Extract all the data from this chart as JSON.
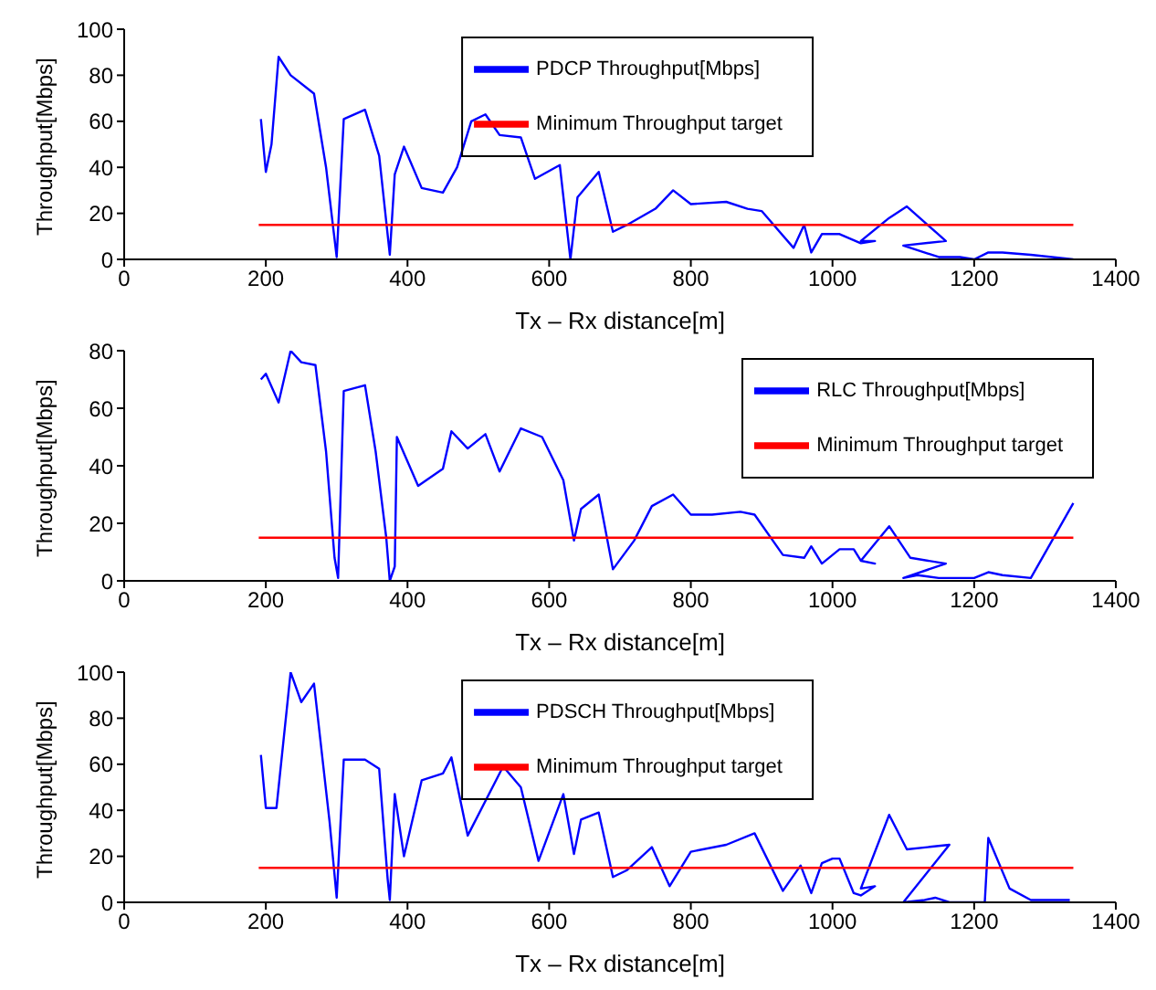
{
  "chart_data": [
    {
      "type": "line",
      "xlabel": "Tx – Rx distance[m]",
      "ylabel": "Throughput[Mbps]",
      "xlim": [
        0,
        1400
      ],
      "xticks": [
        0,
        200,
        400,
        600,
        800,
        1000,
        1200,
        1400
      ],
      "ylim": [
        0,
        100
      ],
      "yticks": [
        0,
        20,
        40,
        60,
        80,
        100
      ],
      "legend": "top",
      "marker": "none",
      "line_style": "solid",
      "series": [
        {
          "name": "PDCP Throughput[Mbps]",
          "color": "#0000ff",
          "x": [
            193,
            200,
            208,
            218,
            235,
            268,
            285,
            300,
            310,
            340,
            360,
            375,
            382,
            395,
            420,
            450,
            470,
            490,
            510,
            530,
            560,
            580,
            615,
            630,
            640,
            670,
            690,
            710,
            750,
            775,
            800,
            850,
            880,
            900,
            945,
            960,
            970,
            985,
            1010,
            1040,
            1060,
            1040,
            1080,
            1105,
            1160,
            1100,
            1150,
            1180,
            1200,
            1220,
            1240,
            1280,
            1340
          ],
          "values": [
            61,
            38,
            50,
            88,
            80,
            72,
            40,
            1,
            61,
            65,
            45,
            2,
            37,
            49,
            31,
            29,
            40,
            60,
            63,
            54,
            53,
            35,
            41,
            0,
            27,
            38,
            12,
            15,
            22,
            30,
            24,
            25,
            22,
            21,
            5,
            15,
            3,
            11,
            11,
            7,
            8,
            8,
            18,
            23,
            8,
            6,
            1,
            1,
            0,
            3,
            3,
            2,
            0
          ]
        },
        {
          "name": "Minimum Throughput target",
          "color": "#ff0000",
          "x": [
            190,
            1340
          ],
          "values": [
            15,
            15
          ]
        }
      ]
    },
    {
      "type": "line",
      "xlabel": "Tx – Rx distance[m]",
      "ylabel": "Throughput[Mbps]",
      "xlim": [
        0,
        1400
      ],
      "xticks": [
        0,
        200,
        400,
        600,
        800,
        1000,
        1200,
        1400
      ],
      "ylim": [
        0,
        80
      ],
      "yticks": [
        0,
        20,
        40,
        60,
        80
      ],
      "legend": "top right",
      "marker": "none",
      "line_style": "solid",
      "series": [
        {
          "name": "RLC Throughput[Mbps]",
          "color": "#0000ff",
          "x": [
            193,
            200,
            218,
            235,
            250,
            270,
            285,
            297,
            302,
            310,
            340,
            355,
            370,
            375,
            382,
            385,
            415,
            450,
            462,
            485,
            510,
            530,
            560,
            590,
            620,
            635,
            645,
            670,
            690,
            720,
            745,
            775,
            800,
            830,
            870,
            890,
            930,
            960,
            970,
            985,
            1010,
            1030,
            1040,
            1060,
            1040,
            1080,
            1110,
            1160,
            1100,
            1120,
            1150,
            1200,
            1220,
            1240,
            1280,
            1340
          ],
          "values": [
            70,
            72,
            62,
            80,
            76,
            75,
            45,
            8,
            1,
            66,
            68,
            45,
            15,
            0,
            5,
            50,
            33,
            39,
            52,
            46,
            51,
            38,
            53,
            50,
            35,
            14,
            25,
            30,
            4,
            14,
            26,
            30,
            23,
            23,
            24,
            23,
            9,
            8,
            12,
            6,
            11,
            11,
            7,
            6,
            7,
            19,
            8,
            6,
            1,
            2,
            1,
            1,
            3,
            2,
            1,
            27
          ]
        },
        {
          "name": "Minimum Throughput target",
          "color": "#ff0000",
          "x": [
            190,
            1340
          ],
          "values": [
            15,
            15
          ]
        }
      ]
    },
    {
      "type": "line",
      "xlabel": "Tx – Rx distance[m]",
      "ylabel": "Throughput[Mbps]",
      "xlim": [
        0,
        1400
      ],
      "xticks": [
        0,
        200,
        400,
        600,
        800,
        1000,
        1200,
        1400
      ],
      "ylim": [
        0,
        100
      ],
      "yticks": [
        0,
        20,
        40,
        60,
        80,
        100
      ],
      "legend": "top",
      "marker": "none",
      "line_style": "solid",
      "series": [
        {
          "name": "PDSCH Throughput[Mbps]",
          "color": "#0000ff",
          "x": [
            193,
            200,
            215,
            235,
            250,
            268,
            290,
            300,
            310,
            340,
            360,
            372,
            375,
            382,
            395,
            420,
            450,
            462,
            485,
            535,
            560,
            585,
            620,
            635,
            645,
            670,
            690,
            710,
            745,
            770,
            800,
            850,
            890,
            930,
            955,
            970,
            985,
            1000,
            1010,
            1030,
            1040,
            1060,
            1040,
            1080,
            1105,
            1165,
            1100,
            1130,
            1145,
            1165,
            1215,
            1220,
            1250,
            1280,
            1335
          ],
          "values": [
            64,
            41,
            41,
            100,
            87,
            95,
            35,
            2,
            62,
            62,
            58,
            10,
            1,
            47,
            20,
            53,
            56,
            63,
            29,
            59,
            50,
            18,
            47,
            21,
            36,
            39,
            11,
            14,
            24,
            7,
            22,
            25,
            30,
            5,
            16,
            4,
            17,
            19,
            19,
            4,
            3,
            7,
            6,
            38,
            23,
            25,
            0,
            1,
            2,
            0,
            0,
            28,
            6,
            1,
            1
          ]
        },
        {
          "name": "Minimum Throughput target",
          "color": "#ff0000",
          "x": [
            190,
            1340
          ],
          "values": [
            15,
            15
          ]
        }
      ]
    }
  ]
}
